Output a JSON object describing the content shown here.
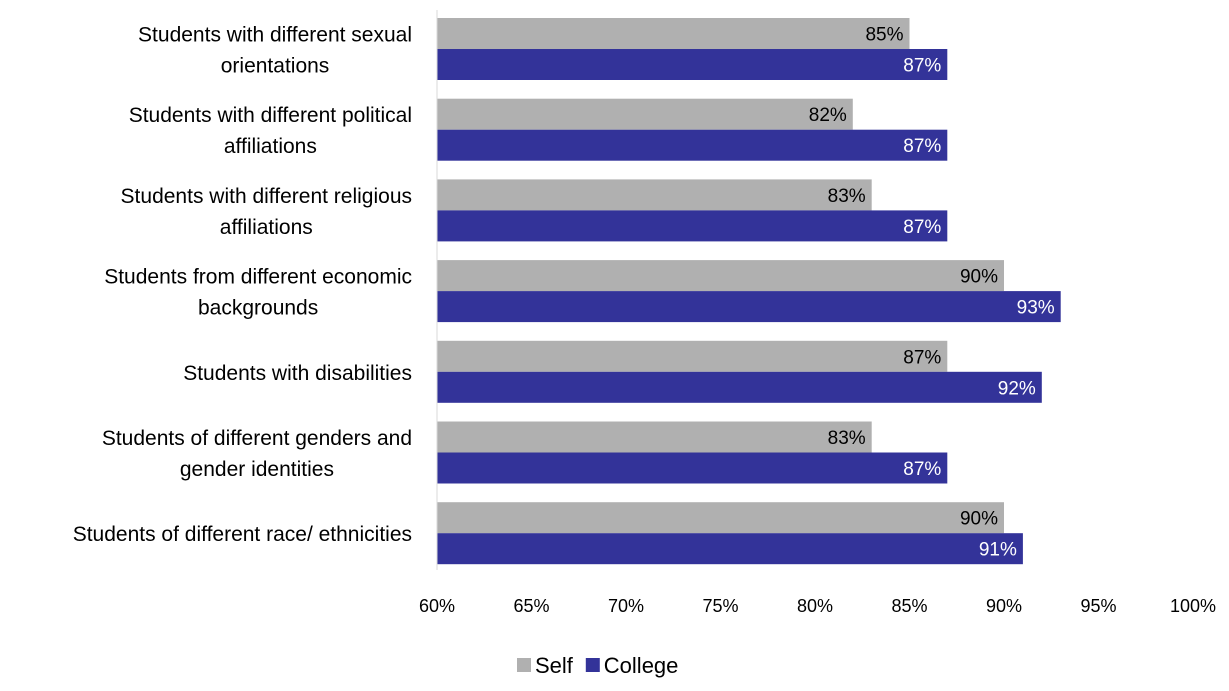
{
  "chart_data": {
    "type": "bar",
    "orientation": "horizontal",
    "categories": [
      [
        "Students with different sexual",
        "orientations"
      ],
      [
        "Students with different political",
        "affiliations"
      ],
      [
        "Students with different religious",
        "affiliations"
      ],
      [
        "Students from different economic",
        "backgrounds"
      ],
      [
        "Students with disabilities"
      ],
      [
        "Students of different genders and",
        "gender identities"
      ],
      [
        "Students of different race/ ethnicities"
      ]
    ],
    "series": [
      {
        "name": "Self",
        "color": "#b0b0b0",
        "label_color": "#000000",
        "values": [
          85,
          82,
          83,
          90,
          87,
          83,
          90
        ],
        "labels": [
          "85%",
          "82%",
          "83%",
          "90%",
          "87%",
          "83%",
          "90%"
        ]
      },
      {
        "name": "College",
        "color": "#333399",
        "label_color": "#ffffff",
        "values": [
          87,
          87,
          87,
          93,
          92,
          87,
          91
        ],
        "labels": [
          "87%",
          "87%",
          "87%",
          "93%",
          "92%",
          "87%",
          "91%"
        ]
      }
    ],
    "x_ticks": [
      60,
      65,
      70,
      75,
      80,
      85,
      90,
      95,
      100
    ],
    "x_tick_labels": [
      "60%",
      "65%",
      "70%",
      "75%",
      "80%",
      "85%",
      "90%",
      "95%",
      "100%"
    ],
    "xlim": [
      60,
      100
    ],
    "grid": false,
    "legend_position": "bottom",
    "title": "",
    "xlabel": "",
    "ylabel": ""
  }
}
